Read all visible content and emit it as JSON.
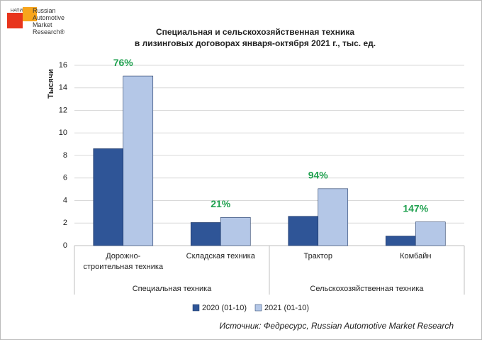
{
  "logo": {
    "mark": "НАПИ",
    "text": "Russian Automotive Market Research®"
  },
  "chart_data": {
    "type": "bar",
    "title": "Специальная и сельскохозяйственная техника",
    "subtitle": "в лизинговых договорах января-октября 2021 г., тыс. ед.",
    "y_label": "Тысячи",
    "categories": [
      "Дорожно-строительная техника",
      "Складская техника",
      "Трактор",
      "Комбайн"
    ],
    "groups": [
      {
        "name": "Специальная техника",
        "size": 2
      },
      {
        "name": "Сельскохозяйственная техника",
        "size": 2
      }
    ],
    "series": [
      {
        "name": "2020 (01-10)",
        "color": "#2f5597",
        "values": [
          8.6,
          2.05,
          2.6,
          0.85
        ]
      },
      {
        "name": "2021 (01-10)",
        "color": "#b4c7e7",
        "values": [
          15.05,
          2.5,
          5.05,
          2.1
        ]
      }
    ],
    "annotations": [
      "76%",
      "21%",
      "94%",
      "147%"
    ],
    "annotation_color": "#21a150",
    "ylim": [
      0,
      16
    ],
    "yticks": [
      0,
      2,
      4,
      6,
      8,
      10,
      12,
      14,
      16
    ],
    "grid": true,
    "legend": "bottom",
    "source": "Источник: Федресурс, Russian Automotive Market Research"
  }
}
